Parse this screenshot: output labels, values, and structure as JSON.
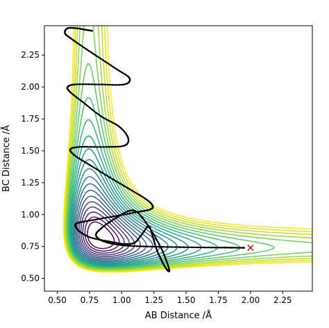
{
  "chart_data": {
    "type": "contour",
    "title": "",
    "xlabel": "AB Distance /Å",
    "ylabel": "BC Distance /Å",
    "xlim": [
      0.4,
      2.48
    ],
    "ylim": [
      0.4,
      2.48
    ],
    "xticks": [
      0.5,
      0.75,
      1.0,
      1.25,
      1.5,
      1.75,
      2.0,
      2.25
    ],
    "yticks": [
      0.5,
      0.75,
      1.0,
      1.25,
      1.5,
      1.75,
      2.0,
      2.25
    ],
    "xtick_labels": [
      "0.50",
      "0.75",
      "1.00",
      "1.25",
      "1.50",
      "1.75",
      "2.00",
      "2.25"
    ],
    "ytick_labels": [
      "0.50",
      "0.75",
      "1.00",
      "1.25",
      "1.50",
      "1.75",
      "2.00",
      "2.25"
    ],
    "grid": false,
    "colormap": "viridis",
    "contour_colors": [
      "#440154",
      "#471365",
      "#482475",
      "#463480",
      "#414487",
      "#3b528b",
      "#355f8d",
      "#2f6c8e",
      "#2a788e",
      "#25848e",
      "#21918c",
      "#1e9c89",
      "#22a884",
      "#2fb47c",
      "#44bf70",
      "#5ec962",
      "#7ad151",
      "#9bd93c",
      "#bddf26",
      "#dfe318",
      "#fde725"
    ],
    "trajectory": {
      "color": "#000000",
      "points": [
        [
          0.77,
          2.44
        ],
        [
          0.71,
          2.45
        ],
        [
          0.65,
          2.46
        ],
        [
          0.58,
          2.46
        ],
        [
          0.56,
          2.42
        ],
        [
          0.62,
          2.37
        ],
        [
          0.72,
          2.3
        ],
        [
          0.84,
          2.22
        ],
        [
          0.96,
          2.14
        ],
        [
          1.06,
          2.07
        ],
        [
          1.02,
          2.02
        ],
        [
          0.82,
          2.02
        ],
        [
          0.64,
          2.02
        ],
        [
          0.58,
          2.0
        ],
        [
          0.6,
          1.96
        ],
        [
          0.7,
          1.88
        ],
        [
          0.84,
          1.77
        ],
        [
          0.98,
          1.69
        ],
        [
          1.05,
          1.6
        ],
        [
          1.02,
          1.54
        ],
        [
          0.86,
          1.53
        ],
        [
          0.67,
          1.53
        ],
        [
          0.6,
          1.51
        ],
        [
          0.64,
          1.46
        ],
        [
          0.75,
          1.39
        ],
        [
          0.91,
          1.29
        ],
        [
          1.06,
          1.2
        ],
        [
          1.19,
          1.12
        ],
        [
          1.24,
          1.07
        ],
        [
          1.22,
          1.04
        ],
        [
          1.12,
          1.02
        ],
        [
          0.96,
          0.99
        ],
        [
          0.79,
          0.96
        ],
        [
          0.68,
          0.94
        ],
        [
          0.64,
          0.92
        ],
        [
          0.67,
          0.87
        ],
        [
          0.76,
          0.82
        ],
        [
          0.9,
          0.79
        ],
        [
          1.02,
          0.77
        ],
        [
          1.1,
          0.78
        ],
        [
          1.16,
          0.85
        ],
        [
          1.21,
          0.91
        ],
        [
          1.24,
          0.83
        ],
        [
          1.27,
          0.73
        ],
        [
          1.31,
          0.64
        ],
        [
          1.35,
          0.57
        ],
        [
          1.37,
          0.56
        ],
        [
          1.35,
          0.63
        ],
        [
          1.3,
          0.75
        ],
        [
          1.22,
          0.89
        ],
        [
          1.13,
          1.01
        ],
        [
          1.06,
          1.03
        ],
        [
          0.95,
          0.97
        ],
        [
          0.85,
          0.9
        ],
        [
          0.8,
          0.84
        ],
        [
          0.86,
          0.79
        ],
        [
          1.0,
          0.76
        ],
        [
          1.2,
          0.75
        ],
        [
          1.45,
          0.745
        ],
        [
          1.7,
          0.742
        ],
        [
          1.85,
          0.741
        ],
        [
          1.95,
          0.74
        ]
      ]
    },
    "end_marker": {
      "x": 2.0,
      "y": 0.74,
      "symbol": "x",
      "color": "#ff0000"
    }
  }
}
